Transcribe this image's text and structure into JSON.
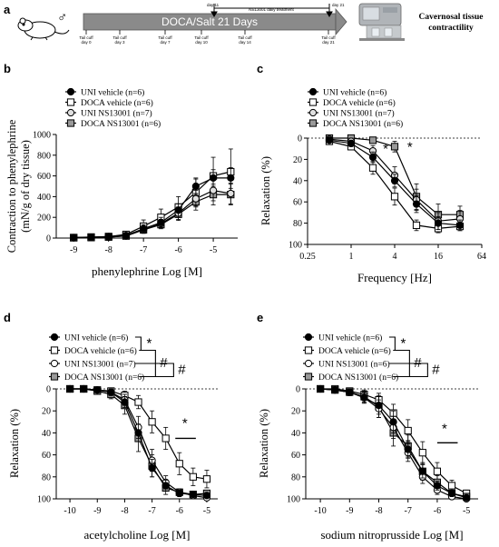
{
  "panel_a": {
    "panel_label": "a",
    "bar_title": "DOCA/Salt 21 Days",
    "sex_symbol": "♂",
    "treatment_label": "NS13001 daily treatment",
    "day11": "day 11",
    "day21": "day 21",
    "timepoints": [
      {
        "l1": "Tail cuff",
        "l2": "day 0"
      },
      {
        "l1": "Tail cuff",
        "l2": "day 3"
      },
      {
        "l1": "Tail cuff",
        "l2": "day 7"
      },
      {
        "l1": "Tail cuff",
        "l2": "day 10"
      },
      {
        "l1": "Tail cuff",
        "l2": "day 14"
      },
      {
        "l1": "Tail cuff",
        "l2": "day 21"
      }
    ],
    "endpoint_line1": "Cavernosal tissue",
    "endpoint_line2": "contractility",
    "icon_rat": "rat-icon",
    "icon_equipment": "organ-bath-equipment-icon"
  },
  "chart_data": [
    {
      "id": "b",
      "type": "line",
      "panel_label": "b",
      "xlabel": "phenylephrine Log [M]",
      "ylabel_lines": [
        "Contraction to phenylephrine",
        "(mN/g of dry tissue)"
      ],
      "xlim": [
        -9.5,
        -4.3
      ],
      "ylim": [
        0,
        1000
      ],
      "xticks": [
        -9,
        -8,
        -7,
        -6,
        -5
      ],
      "xtick_labels": [
        "-9",
        "-8",
        "-7",
        "-6",
        "-5"
      ],
      "yticks": [
        0,
        200,
        400,
        600,
        800,
        1000
      ],
      "ytick_labels": [
        "0",
        "200",
        "400",
        "600",
        "800",
        "1000"
      ],
      "y_inverted": false,
      "dashed_zero": false,
      "legend": [
        {
          "name": "UNI vehicle (n=6)",
          "marker": "circle",
          "fill": "#000000"
        },
        {
          "name": "DOCA vehicle (n=6)",
          "marker": "square",
          "fill": "#ffffff"
        },
        {
          "name": "UNI NS13001 (n=7)",
          "marker": "circle",
          "fill": "#e0e0e0"
        },
        {
          "name": "DOCA NS13001 (n=6)",
          "marker": "square",
          "fill": "#999999"
        }
      ],
      "x": [
        -9,
        -8.5,
        -8,
        -7.5,
        -7,
        -6.5,
        -6,
        -5.5,
        -5,
        -4.5
      ],
      "series": [
        {
          "marker": "circle",
          "fill": "#000000",
          "values": [
            5,
            8,
            15,
            25,
            90,
            150,
            270,
            500,
            580,
            580
          ],
          "err": [
            10,
            10,
            10,
            20,
            40,
            50,
            60,
            80,
            80,
            100
          ]
        },
        {
          "marker": "square",
          "fill": "#ffffff",
          "values": [
            5,
            10,
            15,
            35,
            115,
            200,
            300,
            440,
            600,
            640
          ],
          "err": [
            10,
            10,
            15,
            25,
            60,
            80,
            100,
            130,
            180,
            220
          ]
        },
        {
          "marker": "circle",
          "fill": "#e0e0e0",
          "values": [
            3,
            5,
            10,
            20,
            80,
            140,
            240,
            380,
            460,
            430
          ],
          "err": [
            10,
            10,
            10,
            15,
            35,
            40,
            60,
            80,
            100,
            100
          ]
        },
        {
          "marker": "square",
          "fill": "#999999",
          "values": [
            3,
            5,
            10,
            20,
            80,
            130,
            230,
            350,
            420,
            420
          ],
          "err": [
            10,
            10,
            10,
            15,
            30,
            40,
            60,
            80,
            100,
            100
          ]
        }
      ],
      "annotations": []
    },
    {
      "id": "c",
      "type": "line",
      "panel_label": "c",
      "xlabel": "Frequency [Hz]",
      "ylabel": "Relaxation (%)",
      "x_scale": "log2",
      "xlim": [
        0.25,
        64
      ],
      "ylim": [
        0,
        100
      ],
      "xticks": [
        0.25,
        1,
        4,
        16,
        64
      ],
      "xtick_labels": [
        "0.25",
        "1",
        "4",
        "16",
        "64"
      ],
      "yticks": [
        0,
        20,
        40,
        60,
        80,
        100
      ],
      "ytick_labels": [
        "0",
        "20",
        "40",
        "60",
        "80",
        "100"
      ],
      "y_inverted": true,
      "dashed_zero": true,
      "legend": [
        {
          "name": "UNI vehicle (n=6)",
          "marker": "circle",
          "fill": "#000000"
        },
        {
          "name": "DOCA vehicle (n=6)",
          "marker": "square",
          "fill": "#ffffff"
        },
        {
          "name": "UNI NS13001 (n=7)",
          "marker": "circle",
          "fill": "#e0e0e0"
        },
        {
          "name": "DOCA NS13001 (n=6)",
          "marker": "square",
          "fill": "#999999"
        }
      ],
      "x": [
        0.5,
        1,
        2,
        4,
        8,
        16,
        32
      ],
      "series": [
        {
          "marker": "circle",
          "fill": "#000000",
          "values": [
            2,
            5,
            18,
            40,
            62,
            80,
            82
          ],
          "err": [
            2,
            3,
            5,
            6,
            8,
            6,
            5
          ]
        },
        {
          "marker": "square",
          "fill": "#ffffff",
          "values": [
            3,
            8,
            28,
            55,
            82,
            85,
            83
          ],
          "err": [
            2,
            3,
            6,
            8,
            5,
            4,
            4
          ]
        },
        {
          "marker": "circle",
          "fill": "#e0e0e0",
          "values": [
            1,
            3,
            12,
            35,
            58,
            78,
            76
          ],
          "err": [
            2,
            3,
            5,
            8,
            10,
            8,
            8
          ]
        },
        {
          "marker": "square",
          "fill": "#999999",
          "values": [
            0,
            0,
            2,
            8,
            55,
            72,
            72
          ],
          "err": [
            1,
            1,
            2,
            5,
            12,
            10,
            8
          ]
        }
      ],
      "annotations": [
        {
          "text": "*",
          "x": 3,
          "y": 10
        },
        {
          "text": "*",
          "x": 6.5,
          "y": 8
        }
      ]
    },
    {
      "id": "d",
      "type": "line",
      "panel_label": "d",
      "xlabel": "acetylcholine Log [M]",
      "ylabel": "Relaxation (%)",
      "xlim": [
        -10.5,
        -4.6
      ],
      "ylim": [
        0,
        100
      ],
      "xticks": [
        -10,
        -9,
        -8,
        -7,
        -6,
        -5
      ],
      "xtick_labels": [
        "-10",
        "-9",
        "-8",
        "-7",
        "-6",
        "-5"
      ],
      "yticks": [
        0,
        20,
        40,
        60,
        80,
        100
      ],
      "ytick_labels": [
        "0",
        "20",
        "40",
        "60",
        "80",
        "100"
      ],
      "y_inverted": true,
      "dashed_zero": true,
      "legend": [
        {
          "name": "UNI vehicle (n=6)",
          "marker": "circle",
          "fill": "#000000"
        },
        {
          "name": "DOCA vehicle (n=6)",
          "marker": "square",
          "fill": "#ffffff"
        },
        {
          "name": "UNI NS13001 (n=7)",
          "marker": "circle",
          "fill": "#ffffff"
        },
        {
          "name": "DOCA NS13001 (n=6)",
          "marker": "square",
          "fill": "#999999"
        }
      ],
      "legend_brackets": [
        {
          "from": 0,
          "to": 1,
          "text": "*"
        },
        {
          "from": 1,
          "to": 3,
          "text": "#"
        },
        {
          "from": 2,
          "to": 3,
          "text": "#"
        }
      ],
      "x": [
        -10,
        -9.5,
        -9,
        -8.5,
        -8,
        -7.5,
        -7,
        -6.5,
        -6,
        -5.5,
        -5
      ],
      "series": [
        {
          "marker": "circle",
          "fill": "#000000",
          "values": [
            0,
            0,
            1,
            3,
            12,
            40,
            72,
            88,
            95,
            96,
            97
          ],
          "err": [
            1,
            1,
            2,
            3,
            5,
            8,
            8,
            5,
            3,
            2,
            2
          ]
        },
        {
          "marker": "square",
          "fill": "#ffffff",
          "values": [
            0,
            0,
            1,
            2,
            6,
            12,
            30,
            45,
            68,
            80,
            82
          ],
          "err": [
            1,
            1,
            2,
            2,
            4,
            6,
            10,
            10,
            10,
            8,
            8
          ]
        },
        {
          "marker": "circle",
          "fill": "#ffffff",
          "values": [
            0,
            0,
            1,
            3,
            10,
            35,
            65,
            85,
            94,
            97,
            99
          ],
          "err": [
            1,
            1,
            2,
            3,
            5,
            10,
            10,
            6,
            3,
            2,
            2
          ]
        },
        {
          "marker": "square",
          "fill": "#999999",
          "values": [
            0,
            0,
            2,
            5,
            15,
            45,
            70,
            90,
            94,
            96,
            95
          ],
          "err": [
            1,
            1,
            2,
            4,
            8,
            12,
            10,
            6,
            3,
            2,
            2
          ]
        }
      ],
      "annotations": [
        {
          "text": "*",
          "x": -5.8,
          "y": 31
        },
        {
          "type": "hline",
          "x1": -6.15,
          "x2": -5.4,
          "y": 45
        }
      ]
    },
    {
      "id": "e",
      "type": "line",
      "panel_label": "e",
      "xlabel": "sodium nitroprusside Log [M]",
      "ylabel": "Relaxation (%)",
      "xlim": [
        -10.5,
        -4.6
      ],
      "ylim": [
        0,
        100
      ],
      "xticks": [
        -10,
        -9,
        -8,
        -7,
        -6,
        -5
      ],
      "xtick_labels": [
        "-10",
        "-9",
        "-8",
        "-7",
        "-6",
        "-5"
      ],
      "yticks": [
        0,
        20,
        40,
        60,
        80,
        100
      ],
      "ytick_labels": [
        "0",
        "20",
        "40",
        "60",
        "80",
        "100"
      ],
      "y_inverted": true,
      "dashed_zero": true,
      "legend": [
        {
          "name": "UNI vehicle (n=6)",
          "marker": "circle",
          "fill": "#000000"
        },
        {
          "name": "DOCA vehicle (n=6)",
          "marker": "square",
          "fill": "#ffffff"
        },
        {
          "name": "UNI NS13001 (n=6)",
          "marker": "circle",
          "fill": "#ffffff"
        },
        {
          "name": "DOCA NS13001 (n=6)",
          "marker": "square",
          "fill": "#999999"
        }
      ],
      "legend_brackets": [
        {
          "from": 0,
          "to": 1,
          "text": "*"
        },
        {
          "from": 1,
          "to": 3,
          "text": "#"
        },
        {
          "from": 2,
          "to": 3,
          "text": "#"
        }
      ],
      "x": [
        -10,
        -9.5,
        -9,
        -8.5,
        -8,
        -7.5,
        -7,
        -6.5,
        -6,
        -5.5,
        -5
      ],
      "series": [
        {
          "marker": "circle",
          "fill": "#000000",
          "values": [
            0,
            1,
            3,
            8,
            15,
            30,
            55,
            75,
            88,
            95,
            99
          ],
          "err": [
            1,
            2,
            3,
            5,
            8,
            10,
            8,
            6,
            4,
            3,
            2
          ]
        },
        {
          "marker": "square",
          "fill": "#ffffff",
          "values": [
            0,
            0,
            2,
            5,
            10,
            22,
            38,
            58,
            75,
            88,
            95
          ],
          "err": [
            1,
            1,
            2,
            4,
            6,
            8,
            10,
            10,
            8,
            5,
            3
          ]
        },
        {
          "marker": "circle",
          "fill": "#ffffff",
          "values": [
            0,
            1,
            3,
            8,
            18,
            35,
            58,
            80,
            92,
            98,
            100
          ],
          "err": [
            1,
            2,
            3,
            5,
            8,
            10,
            8,
            6,
            4,
            2,
            1
          ]
        },
        {
          "marker": "square",
          "fill": "#999999",
          "values": [
            0,
            1,
            3,
            7,
            16,
            40,
            52,
            75,
            85,
            95,
            98
          ],
          "err": [
            1,
            2,
            3,
            5,
            10,
            12,
            10,
            8,
            6,
            3,
            2
          ]
        }
      ],
      "annotations": [
        {
          "text": "*",
          "x": -5.75,
          "y": 36
        },
        {
          "type": "hline",
          "x1": -6.0,
          "x2": -5.3,
          "y": 49
        }
      ]
    }
  ]
}
